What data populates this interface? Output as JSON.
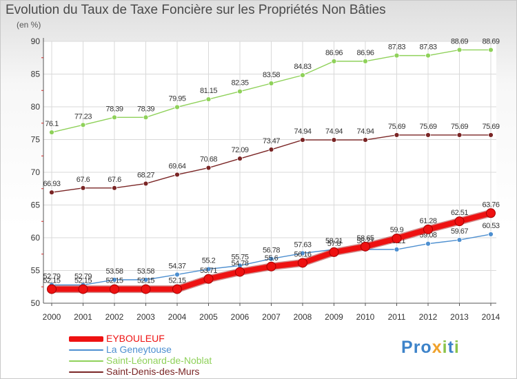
{
  "title": "Evolution du Taux de Taxe Foncière sur les Propriétés Non Bâties",
  "unit_label": "(en %)",
  "brand": {
    "text": "Proxiti",
    "color_pattern": [
      "#3d83c9",
      "#3d83c9",
      "#3d83c9",
      "#f0a22c",
      "#8bc34a",
      "#3d83c9",
      "#8bc34a"
    ]
  },
  "chart_data": {
    "type": "line",
    "title": "Evolution du Taux de Taxe Foncière sur les Propriétés Non Bâties",
    "ylabel": "(en %)",
    "xlabel": "",
    "x": [
      "2000",
      "2001",
      "2002",
      "2003",
      "2004",
      "2005",
      "2006",
      "2007",
      "2008",
      "2009",
      "2010",
      "2011",
      "2012",
      "2013",
      "2014"
    ],
    "ylim": [
      50,
      90
    ],
    "yticks": [
      "50",
      "55",
      "60",
      "65",
      "70",
      "75",
      "80",
      "85",
      "90"
    ],
    "grid": true,
    "legend_position": "bottom-left",
    "series": [
      {
        "name": "EYBOULEUF",
        "color": "#ee1111",
        "emphasis": true,
        "values": [
          52.15,
          52.15,
          52.15,
          52.15,
          52.15,
          53.71,
          54.78,
          55.6,
          56.16,
          57.8,
          58.65,
          59.9,
          61.28,
          62.51,
          63.76
        ],
        "labels": [
          "52.15",
          "52.15",
          "52.15",
          "52.15",
          "52.15",
          "53.71",
          "54.78",
          "55.6",
          "56.16",
          "57.8",
          "58.65",
          "59.9",
          "61.28",
          "62.51",
          "63.76"
        ]
      },
      {
        "name": "La Geneytouse",
        "color": "#4d8fd0",
        "values": [
          52.79,
          52.79,
          53.58,
          53.58,
          54.37,
          55.2,
          55.75,
          56.78,
          57.63,
          58.21,
          58.21,
          58.21,
          59.08,
          59.67,
          60.53
        ],
        "labels": [
          "52.79",
          "52.79",
          "53.58",
          "53.58",
          "54.37",
          "55.2",
          "55.75",
          "56.78",
          "57.63",
          "58.21",
          "58.21",
          "58.21",
          "59.08",
          "59.67",
          "60.53"
        ]
      },
      {
        "name": "Saint-Léonard-de-Noblat",
        "color": "#8fd15a",
        "values": [
          76.1,
          77.23,
          78.39,
          78.39,
          79.95,
          81.15,
          82.35,
          83.58,
          84.83,
          86.96,
          86.96,
          87.83,
          87.83,
          88.69,
          88.69
        ],
        "labels": [
          "76.1",
          "77.23",
          "78.39",
          "78.39",
          "79.95",
          "81.15",
          "82.35",
          "83.58",
          "84.83",
          "86.96",
          "86.96",
          "87.83",
          "87.83",
          "88.69",
          "88.69"
        ]
      },
      {
        "name": "Saint-Denis-des-Murs",
        "color": "#7a2525",
        "values": [
          66.93,
          67.6,
          67.6,
          68.27,
          69.64,
          70.68,
          72.09,
          73.47,
          74.94,
          74.94,
          74.94,
          75.69,
          75.69,
          75.69,
          75.69
        ],
        "labels": [
          "66.93",
          "67.6",
          "67.6",
          "68.27",
          "69.64",
          "70.68",
          "72.09",
          "73.47",
          "74.94",
          "74.94",
          "74.94",
          "75.69",
          "75.69",
          "75.69",
          "75.69"
        ]
      }
    ]
  }
}
